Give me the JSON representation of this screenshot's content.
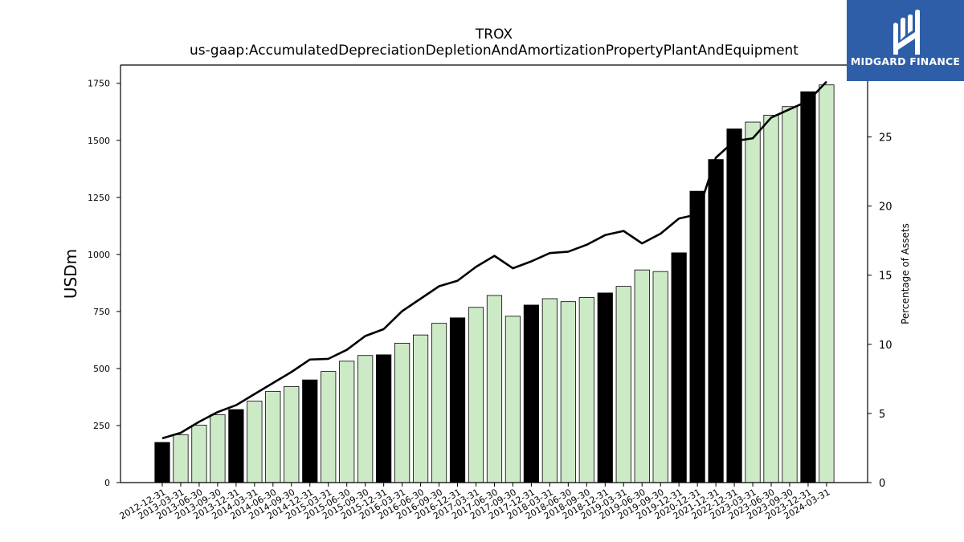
{
  "chart_data": {
    "type": "bar",
    "title": "TROX",
    "subtitle": "us-gaap:AccumulatedDepreciationDepletionAndAmortizationPropertyPlantAndEquipment",
    "ylabel": "USDm",
    "y2label": "Percentage of Assets",
    "ylim": [
      0,
      1830
    ],
    "y2lim": [
      0,
      30.2
    ],
    "yticks": [
      0,
      250,
      500,
      750,
      1000,
      1250,
      1500,
      1750
    ],
    "y2ticks": [
      0,
      5,
      10,
      15,
      20,
      25
    ],
    "grid": false,
    "legend": "none",
    "categories": [
      "2012-12-31",
      "2013-03-31",
      "2013-06-30",
      "2013-09-30",
      "2013-12-31",
      "2014-03-31",
      "2014-06-30",
      "2014-09-30",
      "2014-12-31",
      "2015-03-31",
      "2015-06-30",
      "2015-09-30",
      "2015-12-31",
      "2016-03-31",
      "2016-06-30",
      "2016-09-30",
      "2016-12-31",
      "2017-03-31",
      "2017-06-30",
      "2017-09-30",
      "2017-12-31",
      "2018-03-31",
      "2018-06-30",
      "2018-09-30",
      "2018-12-31",
      "2019-03-31",
      "2019-06-30",
      "2019-09-30",
      "2019-12-31",
      "2020-12-31",
      "2021-12-31",
      "2022-12-31",
      "2023-03-31",
      "2023-06-30",
      "2023-09-30",
      "2023-12-31",
      "2024-03-31"
    ],
    "series": [
      {
        "type": "bar",
        "values": [
          176,
          210,
          252,
          297,
          320,
          357,
          400,
          421,
          450,
          487,
          532,
          557,
          560,
          611,
          647,
          698,
          722,
          768,
          820,
          729,
          778,
          806,
          793,
          811,
          831,
          860,
          932,
          925,
          1007,
          1277,
          1416,
          1550,
          1580,
          1610,
          1648,
          1713,
          1743
        ],
        "annual": [
          true,
          false,
          false,
          false,
          true,
          false,
          false,
          false,
          true,
          false,
          false,
          false,
          true,
          false,
          false,
          false,
          true,
          false,
          false,
          false,
          true,
          false,
          false,
          false,
          true,
          false,
          false,
          false,
          true,
          true,
          true,
          true,
          false,
          false,
          false,
          true,
          false
        ]
      },
      {
        "type": "line",
        "axis": "right",
        "values": [
          3.2,
          3.6,
          4.4,
          5.1,
          5.6,
          6.4,
          7.2,
          8.0,
          8.9,
          8.95,
          9.6,
          10.6,
          11.1,
          12.4,
          13.3,
          14.2,
          14.6,
          15.6,
          16.4,
          15.5,
          16.0,
          16.6,
          16.7,
          17.2,
          17.9,
          18.2,
          17.3,
          18.0,
          19.1,
          19.4,
          23.5,
          24.7,
          24.9,
          26.4,
          27.0,
          27.6,
          29.0
        ]
      }
    ],
    "colors": {
      "annual_bar": "#000000",
      "quarter_bar": "#cdeac7",
      "bar_edge": "#000000",
      "line": "#000000"
    }
  },
  "logo": {
    "text": "MIDGARD FINANCE",
    "background": "#2f5ea8"
  }
}
